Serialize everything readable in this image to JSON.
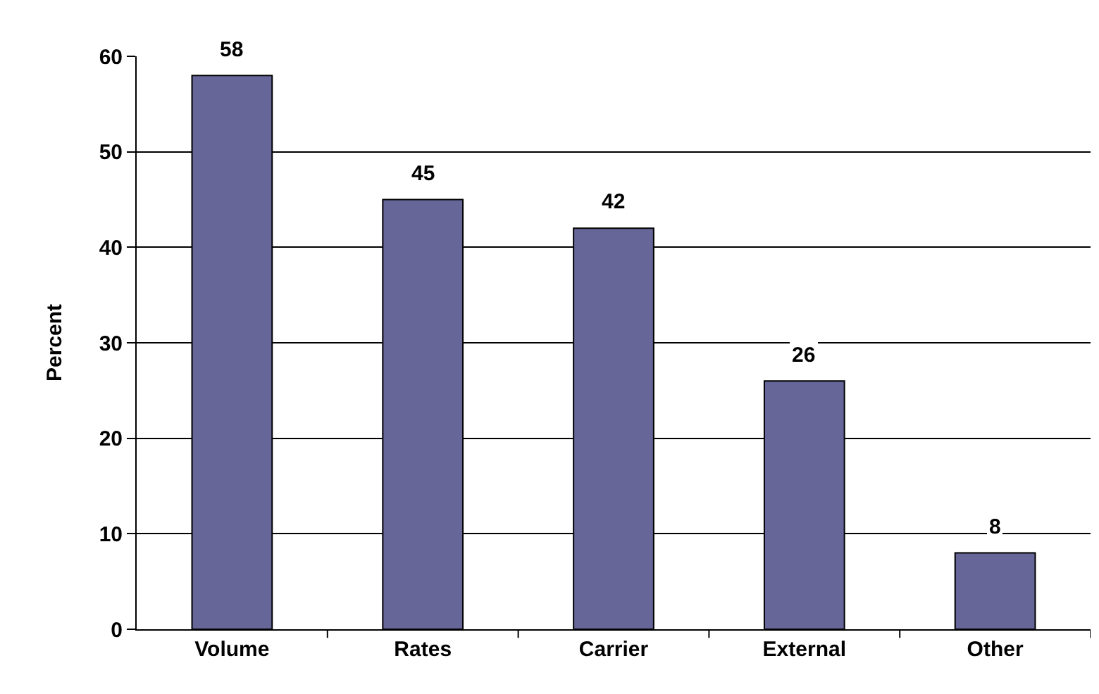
{
  "chart_data": {
    "type": "bar",
    "ylabel": "Percent",
    "categories": [
      "Volume",
      "Rates",
      "Carrier",
      "External",
      "Other"
    ],
    "values": [
      58,
      45,
      42,
      26,
      8
    ],
    "color": "#666699",
    "ylim": [
      0,
      60
    ],
    "yticks": [
      0,
      10,
      20,
      30,
      40,
      50,
      60
    ],
    "grid": "y",
    "data_labels": true
  }
}
